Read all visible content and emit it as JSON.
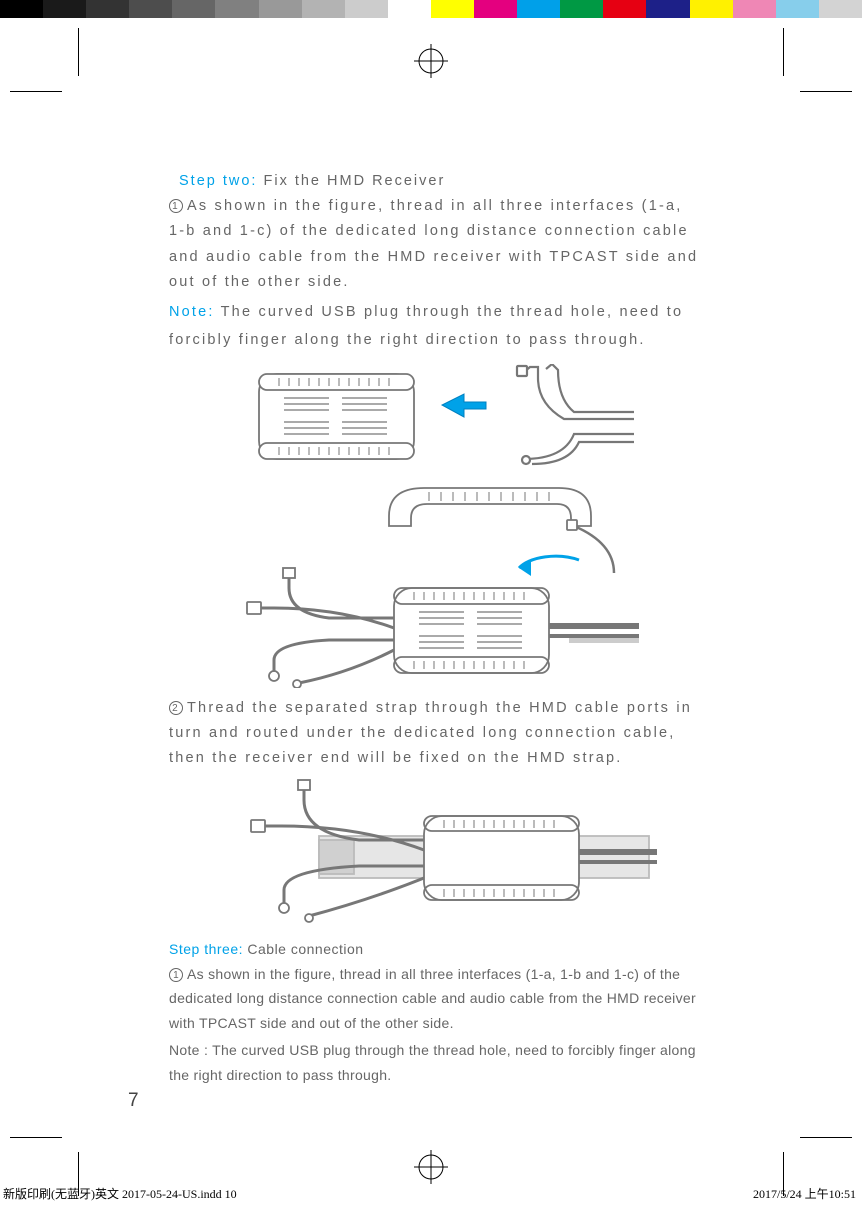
{
  "color_bar": [
    "#000000",
    "#1a1a1a",
    "#333333",
    "#4d4d4d",
    "#666666",
    "#808080",
    "#999999",
    "#b3b3b3",
    "#cccccc",
    "#ffffff",
    "#ffff00",
    "#e4007f",
    "#00a0e9",
    "#009944",
    "#e60012",
    "#1d2088",
    "#fff100",
    "#ef87b5",
    "#87ceeb",
    "#d3d3d3"
  ],
  "step_two": {
    "label": "Step two: ",
    "title": "Fix the HMD Receiver",
    "para1": "As shown in the figure, thread in all three interfaces (1-a, 1-b and 1-c) of the dedicated long distance connection cable and audio cable from the HMD receiver with TPCAST side and out of the other side.",
    "note_label": "Note: ",
    "note_body": "The curved USB plug through the thread hole, need to forcibly finger along the right direction to pass through.",
    "para2": "Thread the separated strap through the HMD cable ports in turn and routed under the dedicated long connection cable, then the receiver end will be fixed on the HMD strap."
  },
  "step_three": {
    "label": "Step three: ",
    "title": "Cable connection",
    "para1": "As shown in the figure, thread in all three interfaces (1-a, 1-b and 1-c) of the dedicated long distance connection cable and audio cable from the HMD receiver with TPCAST side and out of the other side.",
    "para2": "Note : The curved USB plug through the thread hole, need to forcibly finger along the right direction to pass through."
  },
  "page_number": "7",
  "footer": {
    "left": "新版印刷(无蓝牙)英文  2017-05-24-US.indd   10",
    "right": "2017/5/24   上午10:51"
  },
  "accent": "#00a2e8",
  "text_color": "#666666"
}
